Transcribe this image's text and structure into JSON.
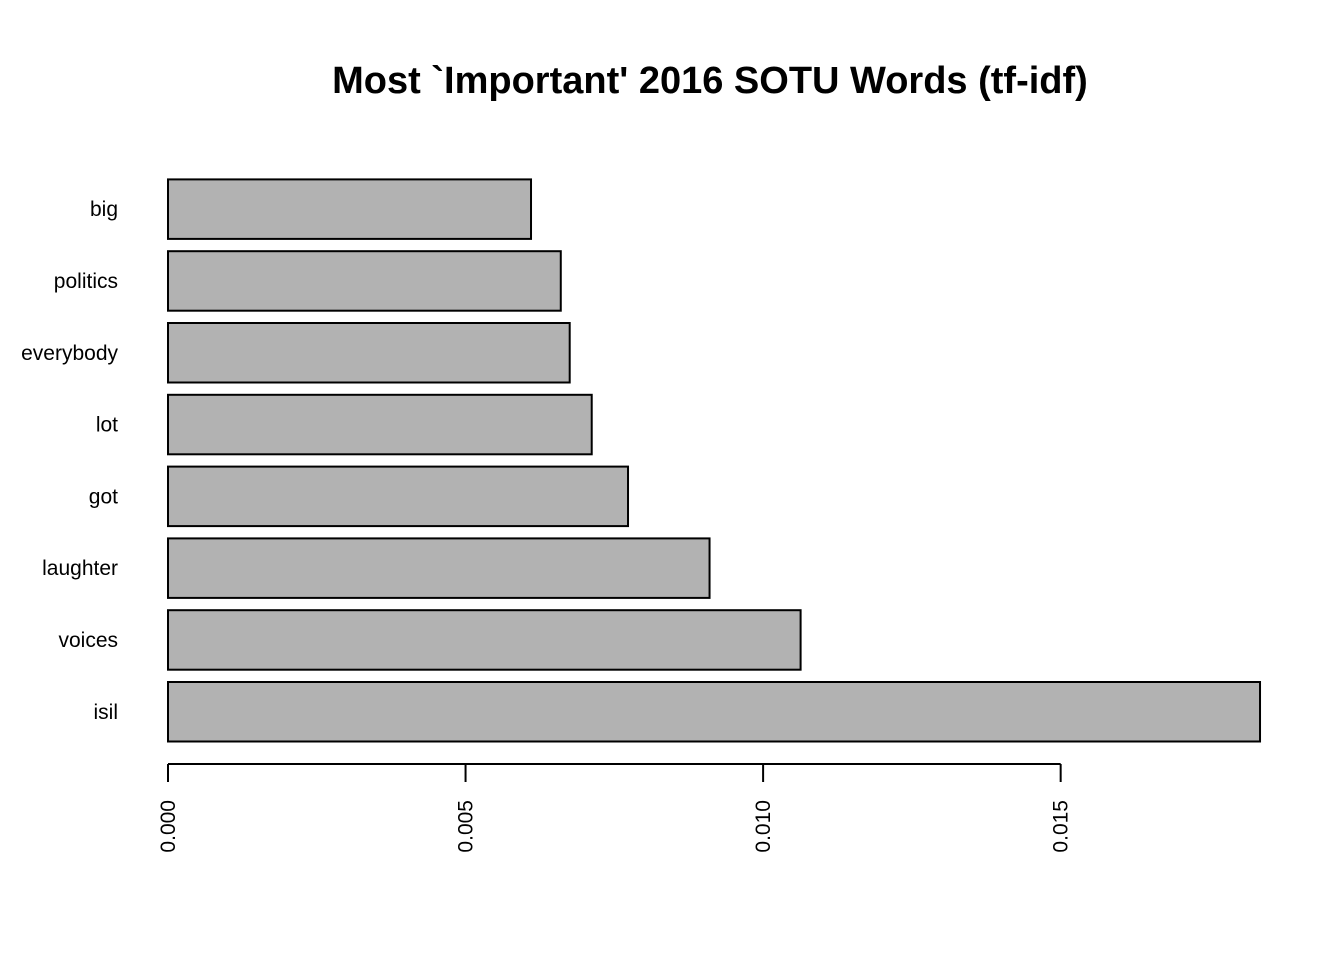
{
  "chart_data": {
    "type": "bar",
    "orientation": "horizontal",
    "title": "Most `Important' 2016 SOTU Words (tf-idf)",
    "xlabel": "",
    "ylabel": "",
    "categories": [
      "isil",
      "voices",
      "laughter",
      "got",
      "lot",
      "everybody",
      "politics",
      "big"
    ],
    "values": [
      0.01835,
      0.01063,
      0.0091,
      0.00773,
      0.00712,
      0.00675,
      0.0066,
      0.0061
    ],
    "xlim": [
      0,
      0.0184
    ],
    "xticks": [
      0.0,
      0.005,
      0.01,
      0.015
    ],
    "xtick_labels": [
      "0.000",
      "0.005",
      "0.010",
      "0.015"
    ],
    "bar_color": "#b2b2b2",
    "grid": false,
    "legend": "none"
  }
}
